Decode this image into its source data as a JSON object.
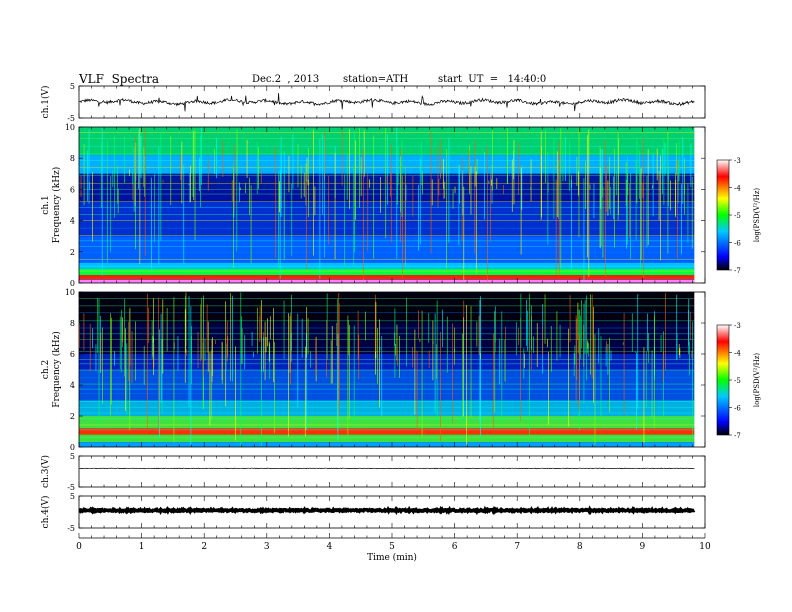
{
  "header": {
    "title": "VLF  Spectra",
    "date": "Dec.2  , 2013",
    "station": "station=ATH",
    "start": "start  UT  =   14:40:0"
  },
  "chart_data": [
    {
      "type": "line",
      "panel": "ch1-voltage",
      "ylabel": "ch.1(V)",
      "ylim": [
        -5,
        5
      ],
      "yticks": [
        "5",
        "-5"
      ],
      "series": [
        {
          "description_level": 0
        }
      ]
    },
    {
      "type": "heatmap",
      "panel": "ch1-spectrogram",
      "ylabel_channel": "ch.1",
      "ylabel": "Frequency  (kHz)",
      "ylim": [
        0,
        10
      ],
      "yticks": [
        "0",
        "2",
        "4",
        "6",
        "8",
        "10"
      ],
      "colorbar": {
        "label": "log(PSD(V²/Hz)",
        "ticks": [
          "-3",
          "-4",
          "-5",
          "-6",
          "-7"
        ],
        "range": [
          -7,
          -3
        ]
      }
    },
    {
      "type": "heatmap",
      "panel": "ch2-spectrogram",
      "ylabel_channel": "ch.2",
      "ylabel": "Frequency  (kHz)",
      "ylim": [
        0,
        10
      ],
      "yticks": [
        "0",
        "2",
        "4",
        "6",
        "8",
        "10"
      ],
      "colorbar": {
        "label": "log(PSD(V²/Hz)",
        "ticks": [
          "-3",
          "-4",
          "-5",
          "-6",
          "-7"
        ],
        "range": [
          -7,
          -3
        ]
      }
    },
    {
      "type": "line",
      "panel": "ch3-voltage",
      "ylabel": "ch.3(V)",
      "ylim": [
        -5,
        5
      ],
      "yticks": [
        "5",
        "-5"
      ]
    },
    {
      "type": "line",
      "panel": "ch4-voltage",
      "ylabel": "ch.4(V)",
      "ylim": [
        -5,
        5
      ],
      "yticks": [
        "5",
        "-5"
      ]
    },
    {
      "type": "axis",
      "panel": "time-axis",
      "xlabel": "Time  (min)",
      "xlim": [
        0,
        10
      ],
      "xticks": [
        "0",
        "1",
        "2",
        "3",
        "4",
        "5",
        "6",
        "7",
        "8",
        "9",
        "10"
      ]
    }
  ],
  "colors": {
    "scale": [
      "#000000",
      "#0000ff",
      "#00c8ff",
      "#00ff00",
      "#ffff00",
      "#ff0000",
      "#ffffff"
    ]
  }
}
